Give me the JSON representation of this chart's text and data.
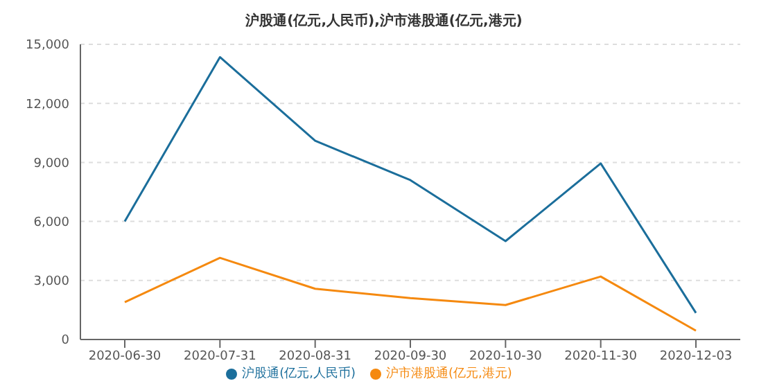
{
  "chart_data": {
    "type": "line",
    "title": "沪股通(亿元,人民币),沪市港股通(亿元,港元)",
    "categories": [
      "2020-06-30",
      "2020-07-31",
      "2020-08-31",
      "2020-09-30",
      "2020-10-30",
      "2020-11-30",
      "2020-12-03"
    ],
    "series": [
      {
        "name": "沪股通(亿元,人民币)",
        "color": "#1b6e9b",
        "values": [
          6000,
          14350,
          10100,
          8100,
          5000,
          8950,
          1350
        ]
      },
      {
        "name": "沪市港股通(亿元,港元)",
        "color": "#f5890f",
        "values": [
          1900,
          4150,
          2580,
          2100,
          1750,
          3200,
          450
        ]
      }
    ],
    "ylim": [
      0,
      15000
    ],
    "yticks": [
      0,
      {
        "value": 3000,
        "label": "3,000"
      },
      {
        "value": 6000,
        "label": "6,000"
      },
      {
        "value": 9000,
        "label": "9,000"
      },
      {
        "value": 12000,
        "label": "12,000"
      },
      {
        "value": 15000,
        "label": "15,000"
      }
    ],
    "grid": "y",
    "legend": "bottom",
    "marker": "none",
    "line_style": "solid"
  }
}
